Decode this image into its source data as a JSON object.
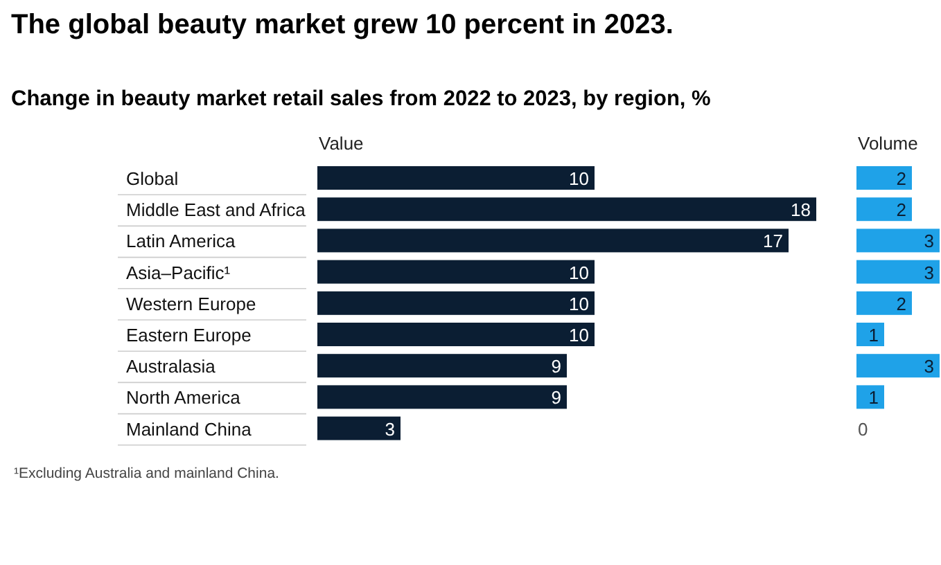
{
  "chart_data": [
    {
      "type": "bar",
      "orientation": "horizontal",
      "title": "The global beauty market grew 10 percent in 2023.",
      "subtitle": "Change in beauty market retail sales from 2022 to 2023, by region, %",
      "xlabel": "Value",
      "categories": [
        "Global",
        "Middle East and Africa",
        "Latin America",
        "Asia–Pacific¹",
        "Western Europe",
        "Eastern Europe",
        "Australasia",
        "North America",
        "Mainland China"
      ],
      "values": [
        10,
        18,
        17,
        10,
        10,
        10,
        9,
        9,
        3
      ],
      "color": "#0b1e33",
      "data_labels": true,
      "annotations": [
        "¹Excluding Australia and mainland China."
      ]
    },
    {
      "type": "bar",
      "orientation": "horizontal",
      "xlabel": "Volume",
      "categories": [
        null,
        null,
        null,
        null,
        null,
        null,
        null,
        null,
        null
      ],
      "values": [
        2,
        2,
        3,
        3,
        2,
        1,
        3,
        1,
        0
      ],
      "color": "#1fa2e8",
      "data_labels": true,
      "tick_labels": false
    }
  ]
}
